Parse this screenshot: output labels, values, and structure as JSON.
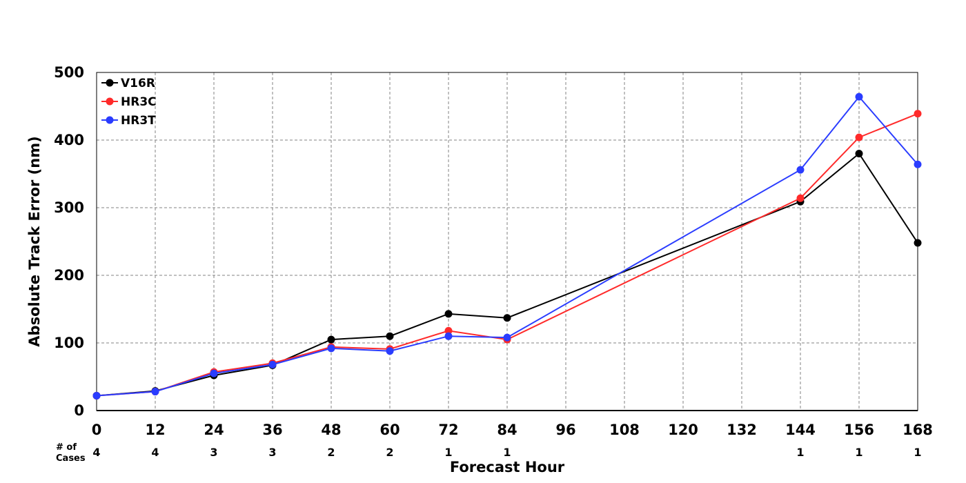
{
  "chart_data": {
    "type": "line",
    "xlabel": "Forecast Hour",
    "ylabel": "Absolute Track Error (nm)",
    "xlim": [
      0,
      168
    ],
    "ylim": [
      0,
      500
    ],
    "x_ticks": [
      0,
      12,
      24,
      36,
      48,
      60,
      72,
      84,
      96,
      108,
      120,
      132,
      144,
      156,
      168
    ],
    "y_ticks": [
      0,
      100,
      200,
      300,
      400,
      500
    ],
    "grid": true,
    "legend_position": "top-left",
    "cases_label_line1": "# of",
    "cases_label_line2": "Cases",
    "cases": [
      {
        "x": 0,
        "n": "4"
      },
      {
        "x": 12,
        "n": "4"
      },
      {
        "x": 24,
        "n": "3"
      },
      {
        "x": 36,
        "n": "3"
      },
      {
        "x": 48,
        "n": "2"
      },
      {
        "x": 60,
        "n": "2"
      },
      {
        "x": 72,
        "n": "1"
      },
      {
        "x": 84,
        "n": "1"
      },
      {
        "x": 144,
        "n": "1"
      },
      {
        "x": 156,
        "n": "1"
      },
      {
        "x": 168,
        "n": "1"
      }
    ],
    "series": [
      {
        "name": "V16R",
        "color": "#000000",
        "x": [
          0,
          12,
          24,
          36,
          48,
          60,
          72,
          84,
          144,
          156,
          168
        ],
        "y": [
          22,
          29,
          52,
          67,
          105,
          110,
          143,
          137,
          309,
          380,
          248
        ]
      },
      {
        "name": "HR3C",
        "color": "#ff2a2a",
        "x": [
          0,
          12,
          24,
          36,
          48,
          60,
          72,
          84,
          144,
          156,
          168
        ],
        "y": [
          22,
          28,
          57,
          70,
          94,
          91,
          118,
          105,
          314,
          404,
          439
        ]
      },
      {
        "name": "HR3T",
        "color": "#2a3cff",
        "x": [
          0,
          12,
          24,
          36,
          48,
          60,
          72,
          84,
          144,
          156,
          168
        ],
        "y": [
          22,
          28,
          55,
          68,
          92,
          88,
          110,
          108,
          356,
          464,
          364
        ]
      }
    ]
  }
}
